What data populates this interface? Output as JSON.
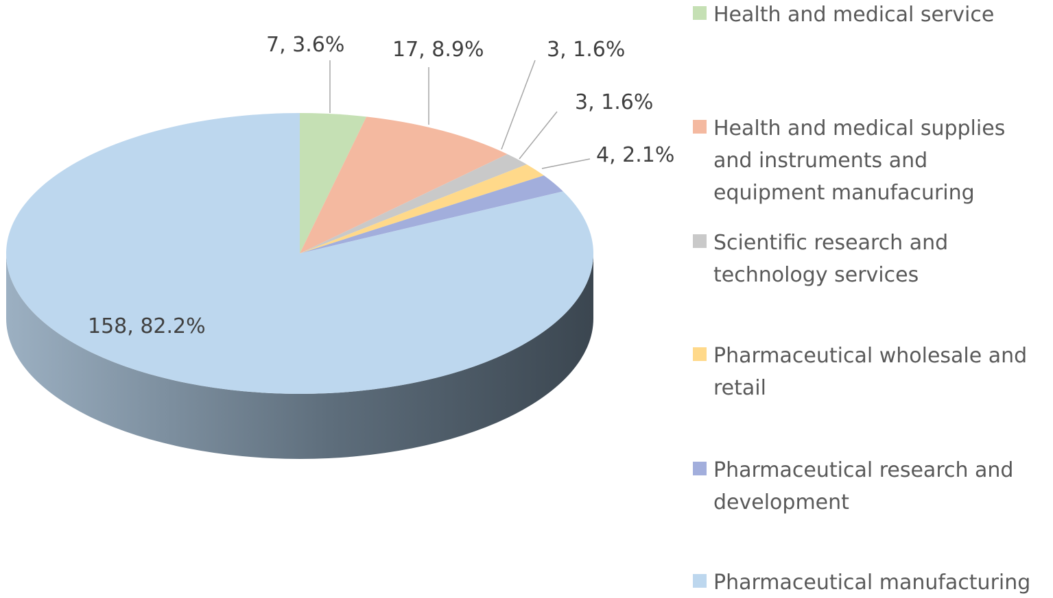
{
  "chart_data": {
    "type": "pie",
    "title": "",
    "three_d": true,
    "legend_position": "right",
    "slices": [
      {
        "name": "Health and medical service",
        "value": 7,
        "percent": 3.6,
        "color": "#C5E0B4",
        "label": "7, 3.6%",
        "legend_lines": [
          "Health and medical service"
        ]
      },
      {
        "name": "Health and medical supplies and instruments and equipment manufacuring",
        "value": 17,
        "percent": 8.9,
        "color": "#F4B9A0",
        "label": "17, 8.9%",
        "legend_lines": [
          "Health and medical supplies",
          "and instruments and",
          "equipment manufacuring"
        ]
      },
      {
        "name": "Scientific research and technology services",
        "value": 3,
        "percent": 1.6,
        "color": "#C9C9C9",
        "label": "3, 1.6%",
        "legend_lines": [
          "Scientific research and",
          "technology services"
        ]
      },
      {
        "name": "Pharmaceutical wholesale and retail",
        "value": 3,
        "percent": 1.6,
        "color": "#FFD98A",
        "label": "3, 1.6%",
        "legend_lines": [
          "Pharmaceutical wholesale and",
          "retail"
        ]
      },
      {
        "name": "Pharmaceutical research and development",
        "value": 4,
        "percent": 2.1,
        "color": "#A2AEDC",
        "label": "4, 2.1%",
        "legend_lines": [
          "Pharmaceutical research and",
          "development"
        ]
      },
      {
        "name": "Pharmaceutical manufacturing",
        "value": 158,
        "percent": 82.2,
        "color": "#BDD7EE",
        "label": "158, 82.2%",
        "legend_lines": [
          "Pharmaceutical manufacturing"
        ]
      }
    ]
  }
}
